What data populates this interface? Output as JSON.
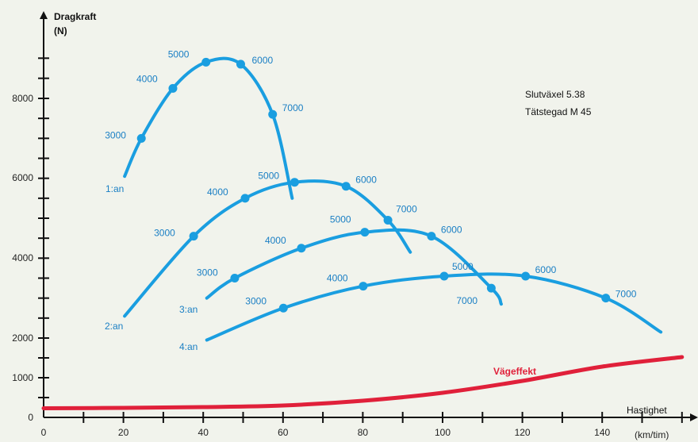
{
  "chart_data": {
    "type": "line",
    "xlabel": "Hastighet",
    "xunit": "(km/tim)",
    "ylabel": "Dragkraft",
    "yunit": "(N)",
    "xlim": [
      0,
      160
    ],
    "ylim": [
      0,
      9500
    ],
    "xticks": [
      0,
      20,
      40,
      60,
      80,
      100,
      120,
      140
    ],
    "xtick_labels": [
      "0",
      "20",
      "40",
      "60",
      "80",
      "100",
      "120",
      "140"
    ],
    "yticks": [
      0,
      1000,
      2000,
      4000,
      6000,
      8000
    ],
    "ytick_labels": [
      "0",
      "1000",
      "2000",
      "4000",
      "6000",
      "8000"
    ],
    "annotations": [
      "Slutväxel 5.38",
      "Tätstegad M 45"
    ],
    "colors": {
      "gear": "#1a9ee0",
      "road": "#e0203a",
      "label": "#1a7fc4"
    },
    "series": [
      {
        "name": "1:an",
        "x": [
          20.3,
          24.5,
          32.4,
          40.7,
          49.4,
          57.4,
          62.3
        ],
        "y": [
          6050,
          7000,
          8250,
          8900,
          8850,
          7600,
          5500
        ],
        "rpm_points": [
          {
            "rpm": "3000",
            "x": 24.5,
            "y": 7000
          },
          {
            "rpm": "4000",
            "x": 32.4,
            "y": 8250
          },
          {
            "rpm": "5000",
            "x": 40.7,
            "y": 8900
          },
          {
            "rpm": "6000",
            "x": 49.4,
            "y": 8850
          },
          {
            "rpm": "7000",
            "x": 57.4,
            "y": 7600
          }
        ]
      },
      {
        "name": "2:an",
        "x": [
          20.3,
          37.6,
          50.5,
          62.9,
          75.8,
          86.3,
          91.9
        ],
        "y": [
          2550,
          4550,
          5500,
          5900,
          5800,
          4950,
          4150
        ],
        "rpm_points": [
          {
            "rpm": "3000",
            "x": 37.6,
            "y": 4550
          },
          {
            "rpm": "4000",
            "x": 50.5,
            "y": 5500
          },
          {
            "rpm": "5000",
            "x": 62.9,
            "y": 5900
          },
          {
            "rpm": "6000",
            "x": 75.8,
            "y": 5800
          },
          {
            "rpm": "7000",
            "x": 86.3,
            "y": 4950
          }
        ]
      },
      {
        "name": "3:an",
        "x": [
          40.9,
          47.9,
          64.6,
          80.5,
          97.2,
          112.2,
          114.7
        ],
        "y": [
          3000,
          3500,
          4250,
          4650,
          4550,
          3250,
          2850
        ],
        "rpm_points": [
          {
            "rpm": "3000",
            "x": 47.9,
            "y": 3500
          },
          {
            "rpm": "4000",
            "x": 64.6,
            "y": 4250
          },
          {
            "rpm": "5000",
            "x": 80.5,
            "y": 4650
          },
          {
            "rpm": "6000",
            "x": 97.2,
            "y": 4550
          },
          {
            "rpm": "7000",
            "x": 112.2,
            "y": 3250
          }
        ]
      },
      {
        "name": "4:an",
        "x": [
          40.9,
          60.1,
          80.1,
          100.4,
          120.8,
          140.9,
          154.7
        ],
        "y": [
          1950,
          2750,
          3300,
          3550,
          3550,
          3000,
          2150
        ],
        "rpm_points": [
          {
            "rpm": "3000",
            "x": 60.1,
            "y": 2750
          },
          {
            "rpm": "4000",
            "x": 80.1,
            "y": 3300
          },
          {
            "rpm": "5000",
            "x": 100.4,
            "y": 3550
          },
          {
            "rpm": "6000",
            "x": 120.8,
            "y": 3550
          },
          {
            "rpm": "7000",
            "x": 140.9,
            "y": 3000
          }
        ]
      },
      {
        "name": "Vägeffekt",
        "x": [
          0,
          20,
          40,
          60,
          80,
          100,
          120,
          140,
          160
        ],
        "y": [
          230,
          240,
          260,
          300,
          420,
          620,
          920,
          1280,
          1520
        ]
      }
    ]
  }
}
